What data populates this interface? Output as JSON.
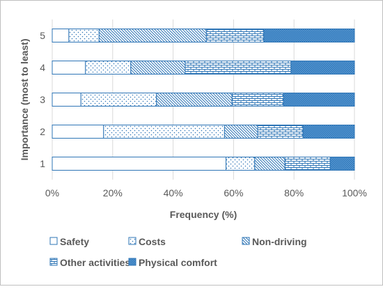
{
  "chart_data": {
    "type": "bar",
    "orientation": "horizontal",
    "stacked": "percent",
    "xlabel": "Frequency (%)",
    "ylabel": "Importance (most to least)",
    "xlim": [
      0,
      100
    ],
    "xticks": [
      "0%",
      "20%",
      "40%",
      "60%",
      "80%",
      "100%"
    ],
    "categories": [
      "1",
      "2",
      "3",
      "4",
      "5"
    ],
    "grid": "vertical",
    "legend_position": "bottom",
    "series": [
      {
        "name": "Safety",
        "pattern": "none",
        "values": [
          57.5,
          17,
          9.5,
          11,
          5.5
        ]
      },
      {
        "name": "Costs",
        "pattern": "dots",
        "values": [
          9.5,
          40,
          25,
          15,
          10
        ]
      },
      {
        "name": "Non-driving",
        "pattern": "diagonal",
        "values": [
          10,
          11,
          25,
          18,
          35.5
        ]
      },
      {
        "name": "Other activities",
        "pattern": "brick",
        "values": [
          15,
          15,
          17,
          35,
          19
        ]
      },
      {
        "name": "Physical comfort",
        "pattern": "dense",
        "values": [
          8,
          17,
          23.5,
          21,
          30
        ]
      }
    ],
    "colors": {
      "outline": "#2E75B6",
      "text": "#595959",
      "grid": "#D9D9D9",
      "frame": "#BFBFBF"
    }
  }
}
